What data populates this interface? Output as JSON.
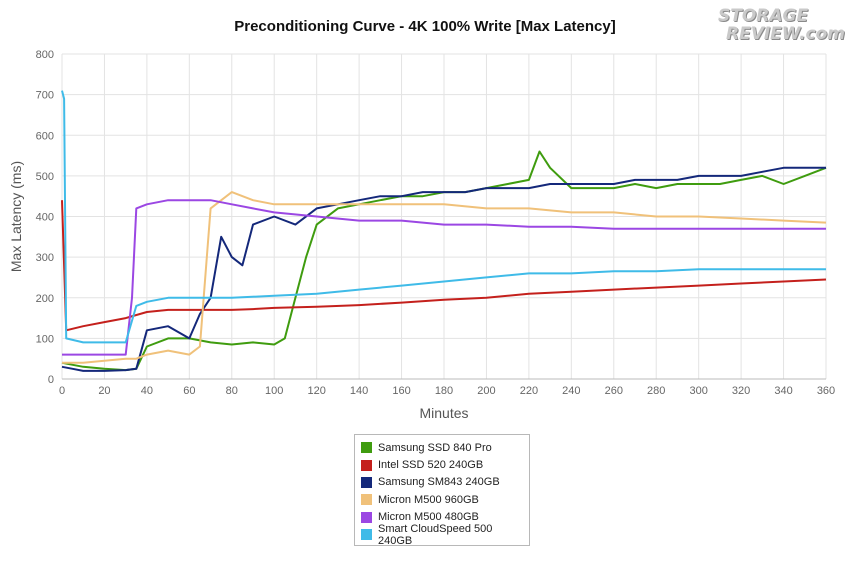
{
  "chart_data": {
    "type": "line",
    "title": "Preconditioning Curve - 4K 100% Write [Max Latency]",
    "xlabel": "Minutes",
    "ylabel": "Max Latency (ms)",
    "xlim": [
      0,
      360
    ],
    "ylim": [
      0,
      800
    ],
    "x_ticks": [
      0,
      20,
      40,
      60,
      80,
      100,
      120,
      140,
      160,
      180,
      200,
      220,
      240,
      260,
      280,
      300,
      320,
      340,
      360
    ],
    "y_ticks": [
      0,
      100,
      200,
      300,
      400,
      500,
      600,
      700,
      800
    ],
    "grid": true,
    "legend_position": "bottom-center",
    "series": [
      {
        "name": "Samsung SSD 840 Pro",
        "color": "#3f9c0f",
        "x": [
          0,
          10,
          20,
          30,
          35,
          40,
          50,
          60,
          70,
          80,
          90,
          100,
          105,
          110,
          115,
          120,
          130,
          140,
          150,
          160,
          170,
          180,
          190,
          200,
          210,
          220,
          225,
          230,
          240,
          250,
          260,
          270,
          280,
          290,
          300,
          310,
          320,
          330,
          340,
          350,
          360
        ],
        "y": [
          40,
          30,
          25,
          22,
          25,
          80,
          100,
          100,
          90,
          85,
          90,
          85,
          100,
          200,
          300,
          380,
          420,
          430,
          440,
          450,
          450,
          460,
          460,
          470,
          480,
          490,
          560,
          520,
          470,
          470,
          470,
          480,
          470,
          480,
          480,
          480,
          490,
          500,
          480,
          500,
          520
        ]
      },
      {
        "name": "Intel SSD 520 240GB",
        "color": "#c4201c",
        "x": [
          0,
          2,
          10,
          20,
          30,
          40,
          50,
          60,
          70,
          80,
          90,
          100,
          120,
          140,
          160,
          180,
          200,
          220,
          240,
          260,
          280,
          300,
          320,
          340,
          360
        ],
        "y": [
          440,
          120,
          130,
          140,
          150,
          165,
          170,
          170,
          170,
          170,
          172,
          175,
          178,
          182,
          188,
          195,
          200,
          210,
          215,
          220,
          225,
          230,
          235,
          240,
          245
        ]
      },
      {
        "name": "Samsung SM843 240GB",
        "color": "#14287a",
        "x": [
          0,
          5,
          10,
          20,
          30,
          35,
          40,
          50,
          60,
          65,
          70,
          75,
          80,
          85,
          90,
          100,
          110,
          120,
          130,
          140,
          150,
          160,
          170,
          180,
          190,
          200,
          210,
          220,
          230,
          240,
          250,
          260,
          270,
          280,
          290,
          300,
          310,
          320,
          330,
          340,
          350,
          360
        ],
        "y": [
          30,
          25,
          20,
          20,
          22,
          25,
          120,
          130,
          100,
          160,
          200,
          350,
          300,
          280,
          380,
          400,
          380,
          420,
          430,
          440,
          450,
          450,
          460,
          460,
          460,
          470,
          470,
          470,
          480,
          480,
          480,
          480,
          490,
          490,
          490,
          500,
          500,
          500,
          510,
          520,
          520,
          520
        ]
      },
      {
        "name": "Micron M500 960GB",
        "color": "#f0c17a",
        "x": [
          0,
          10,
          20,
          30,
          35,
          40,
          50,
          60,
          65,
          70,
          80,
          90,
          100,
          110,
          120,
          140,
          160,
          180,
          200,
          220,
          240,
          260,
          280,
          300,
          320,
          340,
          360
        ],
        "y": [
          40,
          40,
          45,
          50,
          50,
          60,
          70,
          60,
          80,
          420,
          460,
          440,
          430,
          430,
          430,
          430,
          430,
          430,
          420,
          420,
          410,
          410,
          400,
          400,
          395,
          390,
          385
        ]
      },
      {
        "name": "Micron M500 480GB",
        "color": "#9b47e3",
        "x": [
          0,
          5,
          10,
          20,
          30,
          33,
          35,
          40,
          50,
          60,
          70,
          80,
          90,
          100,
          120,
          140,
          160,
          180,
          200,
          220,
          240,
          260,
          280,
          300,
          320,
          340,
          360
        ],
        "y": [
          60,
          60,
          60,
          60,
          60,
          200,
          420,
          430,
          440,
          440,
          440,
          430,
          420,
          410,
          400,
          390,
          390,
          380,
          380,
          375,
          375,
          370,
          370,
          370,
          370,
          370,
          370
        ]
      },
      {
        "name": "Smart CloudSpeed 500 240GB",
        "color": "#3fbbe8",
        "x": [
          0,
          1,
          2,
          10,
          20,
          30,
          35,
          40,
          50,
          60,
          70,
          80,
          100,
          120,
          140,
          160,
          180,
          200,
          220,
          240,
          260,
          280,
          300,
          320,
          340,
          360
        ],
        "y": [
          710,
          690,
          100,
          90,
          90,
          90,
          180,
          190,
          200,
          200,
          200,
          200,
          205,
          210,
          220,
          230,
          240,
          250,
          260,
          260,
          265,
          265,
          270,
          270,
          270,
          270
        ]
      }
    ]
  },
  "logo": {
    "line1": "STORAGE",
    "line2": "REVIEW.com"
  }
}
